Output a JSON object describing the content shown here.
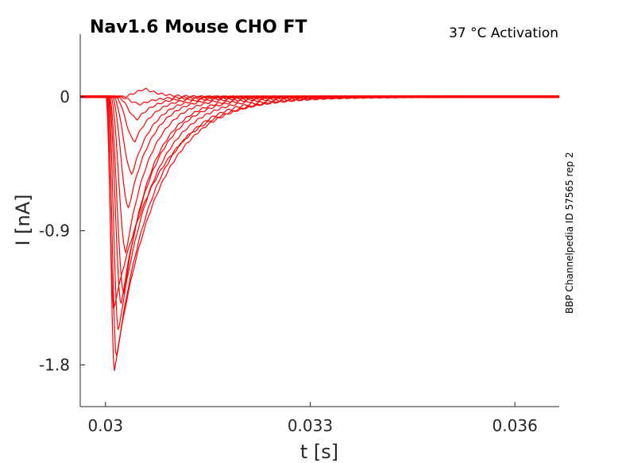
{
  "chart_data": {
    "type": "line",
    "title": "Nav1.6  Mouse  CHO FT",
    "subtitle": "37 °C  Activation",
    "side_label": "BBP Channelpedia ID 57565 rep 2",
    "xlabel": "t [s]",
    "ylabel": "I [nA]",
    "xlim": [
      0.02963,
      0.03665
    ],
    "ylim": [
      -2.08,
      0.42
    ],
    "xticks": [
      0.03,
      0.033,
      0.036
    ],
    "xtick_labels": [
      "0.03",
      "0.033",
      "0.036"
    ],
    "yticks": [
      0,
      -0.9,
      -1.8
    ],
    "ytick_labels": [
      "0",
      "-0.9",
      "-1.8"
    ],
    "grid": false,
    "line_color": "#ff0000",
    "baseline_end": 0.03,
    "series": [
      {
        "onset": 0.03025,
        "peak_time": 0.0306,
        "peak": 0.05,
        "tau": 0.00022
      },
      {
        "onset": 0.0302,
        "peak_time": 0.03052,
        "peak": -0.05,
        "tau": 0.00025
      },
      {
        "onset": 0.03018,
        "peak_time": 0.03047,
        "peak": -0.15,
        "tau": 0.00027
      },
      {
        "onset": 0.03015,
        "peak_time": 0.03043,
        "peak": -0.3,
        "tau": 0.00029
      },
      {
        "onset": 0.03012,
        "peak_time": 0.03039,
        "peak": -0.52,
        "tau": 0.00031
      },
      {
        "onset": 0.0301,
        "peak_time": 0.03034,
        "peak": -0.75,
        "tau": 0.00034
      },
      {
        "onset": 0.03008,
        "peak_time": 0.0303,
        "peak": -1.05,
        "tau": 0.00037
      },
      {
        "onset": 0.03006,
        "peak_time": 0.03027,
        "peak": -1.33,
        "tau": 0.00041
      },
      {
        "onset": 0.03005,
        "peak_time": 0.03023,
        "peak": -1.4,
        "tau": 0.00045
      },
      {
        "onset": 0.03004,
        "peak_time": 0.03019,
        "peak": -1.58,
        "tau": 0.0005
      },
      {
        "onset": 0.03003,
        "peak_time": 0.03016,
        "peak": -1.76,
        "tau": 0.00055
      },
      {
        "onset": 0.03002,
        "peak_time": 0.03013,
        "peak": -1.85,
        "tau": 0.0006
      },
      {
        "onset": 0.03001,
        "peak_time": 0.03012,
        "peak": -1.43,
        "tau": 0.00065
      }
    ]
  }
}
